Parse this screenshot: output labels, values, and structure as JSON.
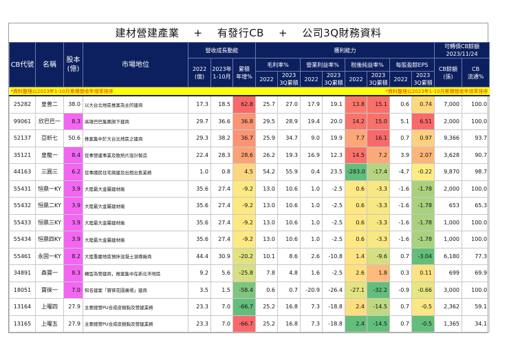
{
  "title": {
    "part1": "建材營建產業",
    "plus1": "+",
    "part2": "有發行CB",
    "plus2": "+",
    "part3": "公司3Q財務資料"
  },
  "header": {
    "cb_code": "CB代號",
    "name": "名稱",
    "capital": "股本\n(億)",
    "market_position": "市場地位",
    "revenue_group": "營收成長動能",
    "rev_2022": "2022\n(億)",
    "rev_2023": "2023年\n1-10月",
    "rev_growth": "累積\n年增%",
    "profit_group": "獲利能力",
    "gross_margin": "毛利率%",
    "op_margin": "營業利益率%",
    "net_margin": "稅後純益率%",
    "eps": "每股盈餘EPS",
    "y2022": "2022",
    "y2023_3q": "2023\n3Q累積",
    "cb_group": "可轉債CB餘額\n2023/11/24",
    "cb_balance": "CB餘額\n(張)",
    "cb_float": "CB\n流通%"
  },
  "note": {
    "left": "*資料整理以2023年1-10月累積營收年增率排序",
    "right": "*資料整理以2023年1-10月累積營收年增率排序"
  },
  "colors": {
    "header_bg": "#0c1f5e",
    "note_bg": "#ffff00",
    "note_text": "#e0301e",
    "capital_highlight": "#f266f2"
  },
  "rows": [
    {
      "code": "25282",
      "name": "皇普二",
      "cap": "38.0",
      "cap_hl": false,
      "pos": "以大台北地區推案為主的建商",
      "r22": "17.3",
      "r23": "18.5",
      "rg": "62.8",
      "rg_c": "#f8696b",
      "gm22": "25.7",
      "gm23": "27.0",
      "om22": "17.9",
      "om23": "19.1",
      "nm22": "13.8",
      "nm22_c": "#f8796c",
      "nm23": "15.1",
      "nm23_c": "#f8706b",
      "eps22": "0.6",
      "eps23": "0.74",
      "eps23_c": "#fed880",
      "cb": "7,000",
      "fl": "100.0"
    },
    {
      "code": "99061",
      "name": "欣巴巴一",
      "cap": "8.3",
      "cap_hl": true,
      "pos": "高雄巴巴集團旗下建商",
      "r22": "29.7",
      "r23": "36.6",
      "rg": "36.8",
      "rg_c": "#fa9473",
      "gm22": "29.5",
      "gm23": "28.9",
      "om22": "19.4",
      "om23": "20.0",
      "nm22": "14.2",
      "nm22_c": "#f8736b",
      "nm23": "15.0",
      "nm23_c": "#f8716b",
      "eps22": "5.1",
      "eps23": "6.51",
      "eps23_c": "#f8696b",
      "cb": "2,000",
      "fl": "100.0"
    },
    {
      "code": "52137",
      "name": "亞昕七",
      "cap": "50.6",
      "cap_hl": false,
      "pos": "推案集中於大台北地區之建商",
      "r22": "29.3",
      "r23": "38.2",
      "rg": "36.7",
      "rg_c": "#fa9473",
      "gm22": "25.9",
      "gm23": "34.7",
      "om22": "9.0",
      "om23": "19.9",
      "nm22": "7.7",
      "nm22_c": "#fba776",
      "nm23": "16.1",
      "nm23_c": "#f8696b",
      "eps22": "0.7",
      "eps23": "0.97",
      "eps23_c": "#fdd17f",
      "cb": "9,366",
      "fl": "93.7"
    },
    {
      "code": "35121",
      "name": "皇龍一",
      "cap": "8.4",
      "cap_hl": true,
      "pos": "從事營建事業及散熱片設計製造",
      "r22": "22.4",
      "r23": "28.3",
      "rg": "28.6",
      "rg_c": "#fba276",
      "gm22": "26.2",
      "gm23": "19.3",
      "om22": "16.9",
      "om23": "12.3",
      "nm22": "14.5",
      "nm22_c": "#f8726b",
      "nm23": "7.2",
      "nm23_c": "#fbaa77",
      "eps22": "3.9",
      "eps23": "2.07",
      "eps23_c": "#fcb679",
      "cb": "3,628",
      "fl": "90.7"
    },
    {
      "code": "44163",
      "name": "三圓三",
      "cap": "6.2",
      "cap_hl": true,
      "pos": "從事國民住宅興建及出租出售業務",
      "r22": "1.0",
      "r23": "0.8",
      "rg": "4.5",
      "rg_c": "#fed680",
      "gm22": "54.2",
      "gm23": "55.9",
      "om22": "0.4",
      "om23": "23.5",
      "nm22": "-283.0",
      "nm22_c": "#63be7b",
      "nm23": "-17.4",
      "nm23_c": "#b5d580",
      "eps22": "-4.7",
      "eps23": "-0.22",
      "eps23_c": "#ffeb84",
      "cb": "9,870",
      "fl": "98.7"
    },
    {
      "code": "55431",
      "name": "恒鼎一KY",
      "cap": "3.9",
      "cap_hl": true,
      "pos": "大陸最大金屬建材廠",
      "r22": "35.6",
      "r23": "27.4",
      "rg": "-9.2",
      "rg_c": "#fde983",
      "gm22": "13.0",
      "gm23": "10.6",
      "om22": "1.0",
      "om23": "-2.5",
      "nm22": "0.6",
      "nm22_c": "#ffe884",
      "nm23": "-3.3",
      "nm23_c": "#f8e883",
      "eps22": "-1.6",
      "eps23": "-1.78",
      "eps23_c": "#a9d27f",
      "cb": "2,000",
      "fl": "100.0"
    },
    {
      "code": "55432",
      "name": "恒鼎二KY",
      "cap": "3.9",
      "cap_hl": true,
      "pos": "大陸最大金屬建材廠",
      "r22": "35.6",
      "r23": "27.4",
      "rg": "-9.2",
      "rg_c": "#fde983",
      "gm22": "13.0",
      "gm23": "10.6",
      "om22": "1.0",
      "om23": "-2.5",
      "nm22": "0.6",
      "nm22_c": "#ffe884",
      "nm23": "-3.3",
      "nm23_c": "#f8e883",
      "eps22": "-1.6",
      "eps23": "-1.78",
      "eps23_c": "#a9d27f",
      "cb": "653",
      "fl": "65.3"
    },
    {
      "code": "55433",
      "name": "恒鼎三KY",
      "cap": "3.9",
      "cap_hl": true,
      "pos": "大陸最大金屬建材廠",
      "r22": "35.6",
      "r23": "27.4",
      "rg": "-9.2",
      "rg_c": "#fde983",
      "gm22": "13.0",
      "gm23": "10.6",
      "om22": "1.0",
      "om23": "-2.5",
      "nm22": "0.6",
      "nm22_c": "#ffe884",
      "nm23": "-3.3",
      "nm23_c": "#f8e883",
      "eps22": "-1.6",
      "eps23": "-1.78",
      "eps23_c": "#a9d27f",
      "cb": "1,000",
      "fl": "100.0"
    },
    {
      "code": "55434",
      "name": "恒鼎四KY",
      "cap": "3.9",
      "cap_hl": true,
      "pos": "大陸最大金屬建材廠",
      "r22": "35.6",
      "r23": "27.4",
      "rg": "-9.2",
      "rg_c": "#fde983",
      "gm22": "13.0",
      "gm23": "10.6",
      "om22": "1.0",
      "om23": "-2.5",
      "nm22": "0.6",
      "nm22_c": "#ffe884",
      "nm23": "-3.3",
      "nm23_c": "#f8e883",
      "eps22": "-1.6",
      "eps23": "-1.78",
      "eps23_c": "#a9d27f",
      "cb": "1,000",
      "fl": "100.0"
    },
    {
      "code": "55461",
      "name": "永固一KY",
      "cap": "8.2",
      "cap_hl": true,
      "pos": "大陸重慶地區預拌混凝土領導廠商",
      "r22": "44.4",
      "r23": "30.9",
      "rg": "-20.2",
      "rg_c": "#e2e282",
      "gm22": "10.1",
      "gm23": "8.6",
      "om22": "2.6",
      "om23": "-10.8",
      "nm22": "1.4",
      "nm22_c": "#ffe483",
      "nm23": "-9.6",
      "nm23_c": "#d5df82",
      "eps22": "0.7",
      "eps23": "-3.04",
      "eps23_c": "#63be7b",
      "cb": "6,180",
      "fl": "77.3"
    },
    {
      "code": "34891",
      "name": "森寶一",
      "cap": "8.3",
      "cap_hl": true,
      "pos": "轉型為營建商，推案集中在新北市地區",
      "r22": "9.2",
      "r23": "5.6",
      "rg": "-25.8",
      "rg_c": "#d6df82",
      "gm22": "7.8",
      "gm23": "4.8",
      "om22": "1.6",
      "om23": "-2.5",
      "nm22": "2.6",
      "nm22_c": "#fee081",
      "nm23": "1.8",
      "nm23_c": "#fcbb7a",
      "eps22": "0.3",
      "eps23": "0.11",
      "eps23_c": "#fee283",
      "cb": "699",
      "fl": "69.9"
    },
    {
      "code": "18051",
      "name": "寶徠一",
      "cap": "7.0",
      "cap_hl": true,
      "pos": "知名建案「寶徠花園廣場」建商",
      "r22": "3.5",
      "r23": "1.5",
      "rg": "-58.4",
      "rg_c": "#7cc67d",
      "gm22": "0.6",
      "gm23": "0.7",
      "om22": "-20.9",
      "om23": "-26.4",
      "nm22": "-27.1",
      "nm22_c": "#e4e382",
      "nm23": "-32.2",
      "nm23_c": "#63be7b",
      "eps22": "-0.9",
      "eps23": "-0.66",
      "eps23_c": "#e8e583",
      "cb": "3,000",
      "fl": "100.0"
    },
    {
      "code": "13164",
      "name": "上曜四",
      "cap": "27.9",
      "cap_hl": false,
      "pos": "主要經營PU合成皮樹脂及營建業務",
      "r22": "23.3",
      "r23": "7.0",
      "rg": "-66.7",
      "rg_c": "#63be7b",
      "gm22": "25.2",
      "gm23": "16.8",
      "om22": "7.3",
      "om23": "-18.8",
      "nm22": "2.4",
      "nm22_c": "#fedd81",
      "nm23": "-14.5",
      "nm23_c": "#c0d981",
      "eps22": "0.7",
      "eps23": "-0.5",
      "eps23_c": "#ffe684",
      "cb": "2,362",
      "fl": "59.1"
    },
    {
      "code": "13165",
      "name": "上曜五",
      "cap": "27.9",
      "cap_hl": false,
      "pos": "主要經營PU合成皮樹脂及營建業務",
      "r22": "23.3",
      "r23": "7.0",
      "rg": "-66.7",
      "rg_c": "#f8696b",
      "gm22": "25.2",
      "gm23": "16.8",
      "om22": "7.3",
      "om23": "-18.8",
      "nm22": "2.4",
      "nm22_c": "#63be7b",
      "nm23": "-14.5",
      "nm23_c": "#63be7b",
      "eps22": "0.7",
      "eps23": "-0.5",
      "eps23_c": "#63be7b",
      "cb": "1,365",
      "fl": "34.1"
    }
  ]
}
